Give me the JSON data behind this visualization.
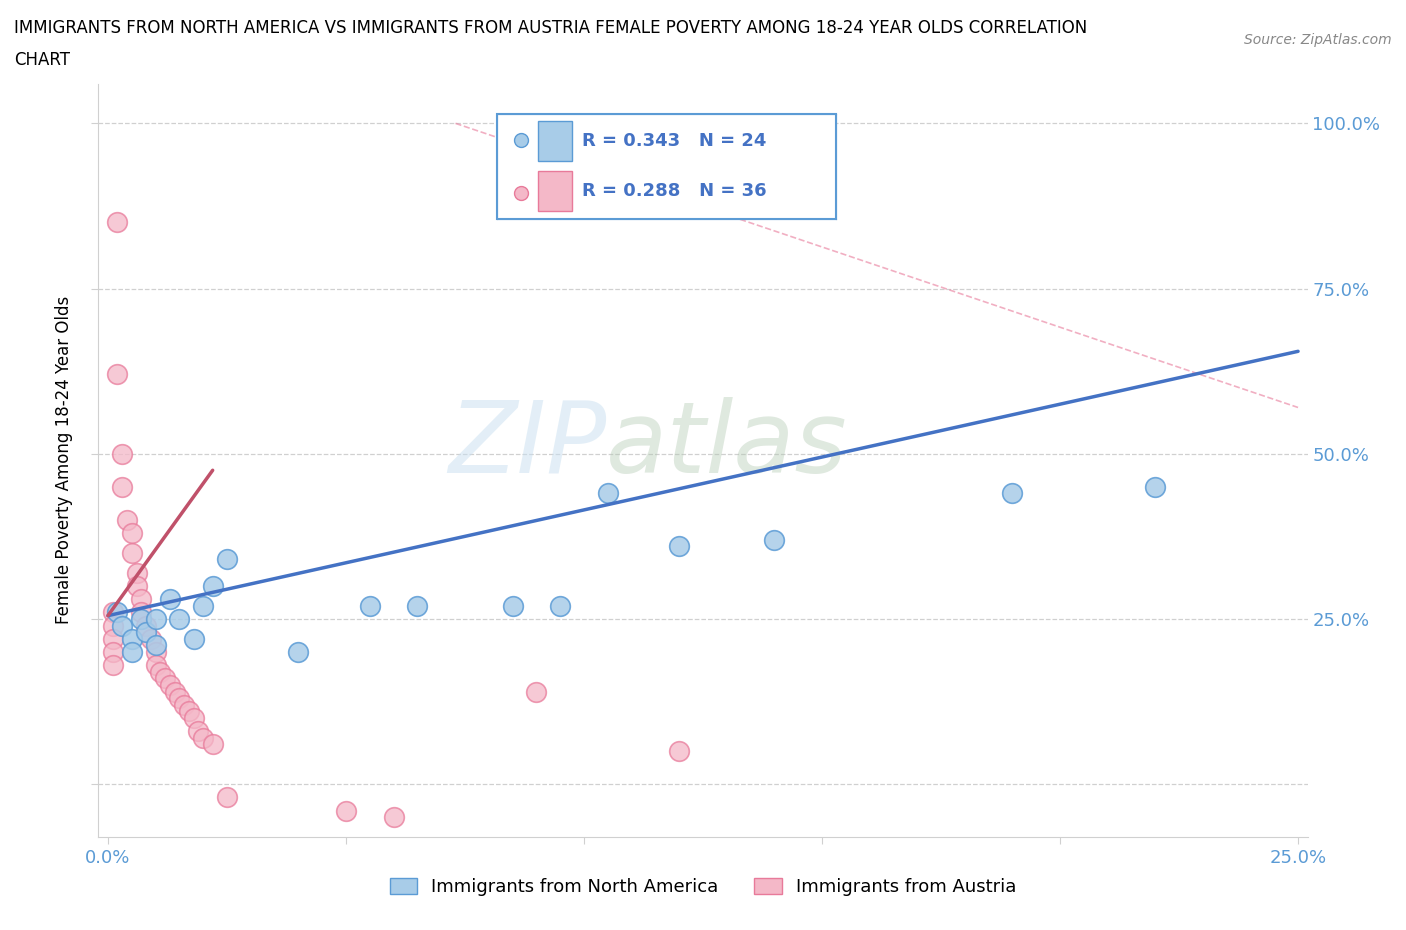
{
  "title": "IMMIGRANTS FROM NORTH AMERICA VS IMMIGRANTS FROM AUSTRIA FEMALE POVERTY AMONG 18-24 YEAR OLDS CORRELATION\nCHART",
  "source": "Source: ZipAtlas.com",
  "ylabel": "Female Poverty Among 18-24 Year Olds",
  "xlim": [
    -0.002,
    0.252
  ],
  "ylim": [
    -0.08,
    1.06
  ],
  "x_ticks": [
    0.0,
    0.05,
    0.1,
    0.15,
    0.2,
    0.25
  ],
  "x_tick_labels": [
    "0.0%",
    "",
    "",
    "",
    "",
    "25.0%"
  ],
  "y_ticks": [
    0.0,
    0.25,
    0.5,
    0.75,
    1.0
  ],
  "y_tick_labels": [
    "",
    "25.0%",
    "50.0%",
    "75.0%",
    "100.0%"
  ],
  "blue_R": 0.343,
  "blue_N": 24,
  "pink_R": 0.288,
  "pink_N": 36,
  "blue_color": "#a8cce8",
  "blue_edge_color": "#5b9bd5",
  "blue_line_color": "#4472c4",
  "pink_color": "#f4b8c8",
  "pink_edge_color": "#e87a9a",
  "pink_line_color": "#c0516a",
  "blue_scatter_x": [
    0.002,
    0.003,
    0.005,
    0.005,
    0.007,
    0.008,
    0.01,
    0.01,
    0.013,
    0.015,
    0.018,
    0.02,
    0.022,
    0.025,
    0.04,
    0.055,
    0.065,
    0.085,
    0.095,
    0.105,
    0.12,
    0.14,
    0.19,
    0.22
  ],
  "blue_scatter_y": [
    0.26,
    0.24,
    0.22,
    0.2,
    0.25,
    0.23,
    0.25,
    0.21,
    0.28,
    0.25,
    0.22,
    0.27,
    0.3,
    0.34,
    0.2,
    0.27,
    0.27,
    0.27,
    0.27,
    0.44,
    0.36,
    0.37,
    0.44,
    0.45
  ],
  "pink_scatter_x": [
    0.001,
    0.001,
    0.001,
    0.001,
    0.001,
    0.002,
    0.002,
    0.003,
    0.003,
    0.004,
    0.005,
    0.005,
    0.006,
    0.006,
    0.007,
    0.007,
    0.008,
    0.009,
    0.01,
    0.01,
    0.011,
    0.012,
    0.013,
    0.014,
    0.015,
    0.016,
    0.017,
    0.018,
    0.019,
    0.02,
    0.022,
    0.025,
    0.05,
    0.06,
    0.09,
    0.12
  ],
  "pink_scatter_y": [
    0.26,
    0.24,
    0.22,
    0.2,
    0.18,
    0.85,
    0.62,
    0.5,
    0.45,
    0.4,
    0.38,
    0.35,
    0.32,
    0.3,
    0.28,
    0.26,
    0.24,
    0.22,
    0.2,
    0.18,
    0.17,
    0.16,
    0.15,
    0.14,
    0.13,
    0.12,
    0.11,
    0.1,
    0.08,
    0.07,
    0.06,
    -0.02,
    -0.04,
    -0.05,
    0.14,
    0.05
  ],
  "blue_line_x": [
    0.0,
    0.25
  ],
  "blue_line_y": [
    0.255,
    0.655
  ],
  "pink_line_x": [
    0.0,
    0.022
  ],
  "pink_line_y": [
    0.255,
    0.475
  ],
  "dash_line_x": [
    0.073,
    0.25
  ],
  "dash_line_y": [
    1.0,
    0.57
  ],
  "watermark_zip": "ZIP",
  "watermark_atlas": "atlas",
  "background_color": "#ffffff",
  "grid_color": "#d0d0d0",
  "tick_color": "#5b9bd5",
  "legend_border_color": "#5b9bd5"
}
